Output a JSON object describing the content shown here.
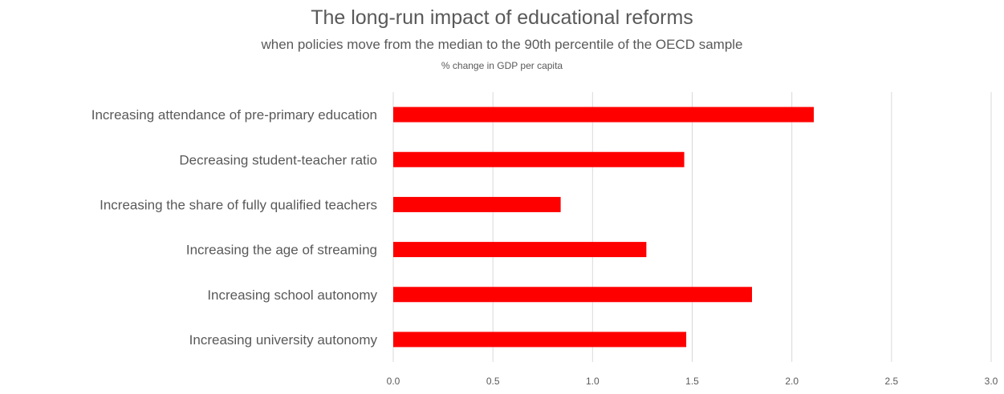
{
  "chart_data": {
    "type": "bar",
    "orientation": "horizontal",
    "title": "The long-run impact of educational reforms",
    "subtitle": "when policies move from the median to the 90th percentile of the OECD sample",
    "unit_label": "% change in GDP per capita",
    "categories": [
      "Increasing attendance of pre-primary education",
      "Decreasing student-teacher ratio",
      "Increasing the share of fully qualified teachers",
      "Increasing the age of streaming",
      "Increasing school autonomy",
      "Increasing university autonomy"
    ],
    "values": [
      2.11,
      1.46,
      0.84,
      1.27,
      1.8,
      1.47
    ],
    "xlim": [
      0,
      3.0
    ],
    "x_ticks": [
      "0.0",
      "0.5",
      "1.0",
      "1.5",
      "2.0",
      "2.5",
      "3.0"
    ],
    "grid": "vertical",
    "bar_color": "#ff0000"
  }
}
